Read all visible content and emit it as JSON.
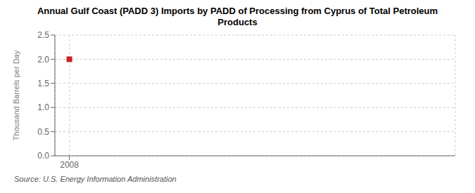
{
  "chart_data": {
    "type": "scatter",
    "title": "Annual Gulf Coast (PADD 3) Imports by PADD of Processing from Cyprus of Total Petroleum\nProducts",
    "ylabel": "Thousand Barrels per Day",
    "source": "Source: U.S. Energy Information Administration",
    "x": [
      2008
    ],
    "values": [
      2.0
    ],
    "color": "#cc2222",
    "marker": "square",
    "xlim": [
      2007.7,
      2016.0
    ],
    "xticks": [
      2008
    ],
    "ylim": [
      0.0,
      2.5
    ],
    "yticks": [
      {
        "value": 0.0,
        "label": "0.0"
      },
      0.5,
      {
        "value": 1.0,
        "label": "1.0"
      },
      1.5,
      {
        "value": 2.0,
        "label": "2.0"
      },
      2.5
    ],
    "grid": true
  }
}
